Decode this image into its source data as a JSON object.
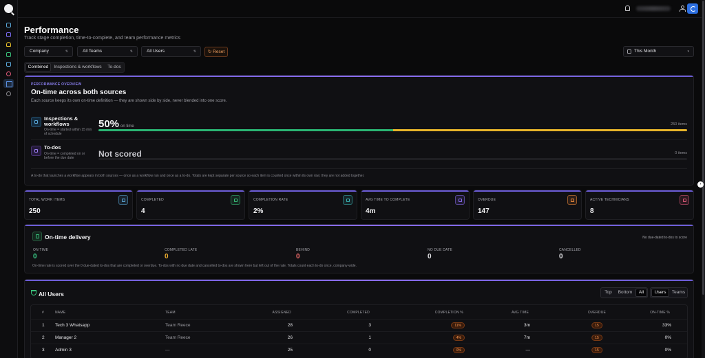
{
  "page": {
    "title": "Performance",
    "subtitle": "Track stage completion, time-to-complete, and team performance metrics"
  },
  "filters": {
    "company": "Company",
    "teams": "All Teams",
    "users": "All Users",
    "reset": "Reset",
    "date_range": "This Month"
  },
  "tabs": [
    "Combined",
    "Inspections & workflows",
    "To-dos"
  ],
  "overview": {
    "eyebrow": "PERFORMANCE OVERVIEW",
    "title": "On-time across both sources",
    "description": "Each source keeps its own on-time definition — they are shown side by side, never blended into one score.",
    "sources": [
      {
        "name": "Inspections & workflows",
        "note": "On-time = started within 15 min of schedule",
        "value": "50%",
        "value_suffix": "on time",
        "items": "250 items",
        "on_time_fraction": 0.5
      },
      {
        "name": "To-dos",
        "note": "On-time = completed on or before the due date",
        "value": "Not scored",
        "items": "0 items"
      }
    ],
    "footnote": "A to-do that launches a workflow appears in both sources — once as a workflow run and once as a to-do. Totals are kept separate per source so each item is counted once within its own row; they are not added together."
  },
  "stats": [
    {
      "label": "TOTAL WORK ITEMS",
      "value": "250",
      "icon": "clipboard-icon",
      "color": "#5aa7d8"
    },
    {
      "label": "COMPLETED",
      "value": "4",
      "icon": "check-circle-icon",
      "color": "#39c07a"
    },
    {
      "label": "COMPLETION RATE",
      "value": "2%",
      "icon": "percent-icon",
      "color": "#3ab3b3"
    },
    {
      "label": "AVG TIME TO COMPLETE",
      "value": "4m",
      "icon": "clock-icon",
      "color": "#8a6cf0"
    },
    {
      "label": "OVERDUE",
      "value": "147",
      "icon": "warning-icon",
      "color": "#f08a3a"
    },
    {
      "label": "ACTIVE TECHNICIANS",
      "value": "8",
      "icon": "users-icon",
      "color": "#e05a7a"
    }
  ],
  "delivery": {
    "title": "On-time delivery",
    "note": "No due-dated to-dos to score",
    "metrics": [
      {
        "label": "ON TIME",
        "value": "0",
        "color": "#3ad08a"
      },
      {
        "label": "COMPLETED LATE",
        "value": "0",
        "color": "#f0b030"
      },
      {
        "label": "BEHIND",
        "value": "0",
        "color": "#f06a6a"
      },
      {
        "label": "NO DUE DATE",
        "value": "0",
        "color": "#e7e7ea"
      },
      {
        "label": "CANCELLED",
        "value": "0",
        "color": "#e7e7ea"
      }
    ],
    "footnote": "On-time rate is scored over the 0 due-dated to-dos that are completed or overdue. To-dos with no due date and cancelled to-dos are shown here but left out of the rate. Totals count each to-do once, company-wide."
  },
  "users": {
    "title": "All Users",
    "range_buttons": [
      "Top",
      "Bottom",
      "All"
    ],
    "view_buttons": [
      "Users",
      "Teams"
    ],
    "columns": [
      "#",
      "NAME",
      "TEAM",
      "ASSIGNED",
      "COMPLETED",
      "COMPLETION %",
      "AVG TIME",
      "OVERDUE",
      "ON-TIME %"
    ],
    "rows": [
      {
        "rank": "1",
        "name": "Tech 3 Whatsapp",
        "team": "Team Reece",
        "assigned": "28",
        "completed": "3",
        "completion": "11%",
        "avg_time": "3m",
        "overdue": "15",
        "on_time": "33%"
      },
      {
        "rank": "2",
        "name": "Manager 2",
        "team": "Team Reece",
        "assigned": "26",
        "completed": "1",
        "completion": "4%",
        "avg_time": "7m",
        "overdue": "15",
        "on_time": "0%"
      },
      {
        "rank": "3",
        "name": "Admin 3",
        "team": "—",
        "assigned": "25",
        "completed": "0",
        "completion": "0%",
        "avg_time": "—",
        "overdue": "15",
        "on_time": "0%"
      }
    ]
  },
  "colors": {
    "accent": "#2d6fe0",
    "bar_green": "#2bb673",
    "bar_yellow": "#e8b52a"
  }
}
